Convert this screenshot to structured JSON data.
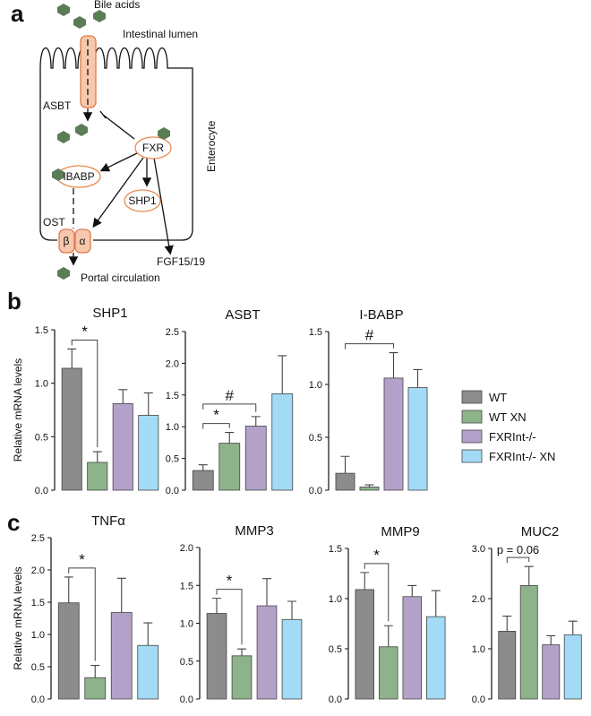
{
  "panels": {
    "a": "a",
    "b": "b",
    "c": "c"
  },
  "diagram": {
    "bile_acids": "Bile acids",
    "lumen": "Intestinal lumen",
    "asbt": "ASBT",
    "enterocyte": "Enterocyte",
    "fxr": "FXR",
    "ibabp": "IBABP",
    "shp1": "SHP1",
    "ost": "OST",
    "beta": "β",
    "alpha": "α",
    "fgf": "FGF15/19",
    "portal": "Portal circulation"
  },
  "legend": [
    {
      "name": "WT",
      "color": "#8c8c8c"
    },
    {
      "name": "WT XN",
      "color": "#8db38a"
    },
    {
      "name": "FXRInt-/-",
      "color": "#b4a1c9"
    },
    {
      "name": "FXRInt-/- XN",
      "color": "#a3daf5"
    }
  ],
  "chart_data": [
    {
      "type": "bar",
      "title": "SHP1",
      "ylabel": "Relative mRNA levels",
      "values": [
        1.14,
        0.26,
        0.81,
        0.7
      ],
      "errors": [
        0.18,
        0.1,
        0.13,
        0.21
      ],
      "ylim": [
        0,
        1.5
      ],
      "yticks": [
        {
          "value": 0,
          "label": "0.0"
        },
        0.5,
        {
          "value": 1,
          "label": "1.0"
        },
        1.5
      ],
      "annotations": [
        {
          "text": "*",
          "between": [
            0,
            1
          ]
        }
      ]
    },
    {
      "type": "bar",
      "title": "ASBT",
      "values": [
        0.31,
        0.74,
        1.01,
        1.52
      ],
      "errors": [
        0.09,
        0.17,
        0.15,
        0.6
      ],
      "ylim": [
        0,
        2.5
      ],
      "yticks": [
        {
          "value": 0,
          "label": "0.0"
        },
        0.5,
        {
          "value": 1,
          "label": "1.0"
        },
        1.5,
        {
          "value": 2,
          "label": "2.0"
        },
        2.5
      ],
      "annotations": [
        {
          "text": "*",
          "between": [
            0,
            1
          ]
        },
        {
          "text": "#",
          "between": [
            0,
            2
          ]
        }
      ]
    },
    {
      "type": "bar",
      "title": "I-BABP",
      "values": [
        0.16,
        0.03,
        1.06,
        0.97
      ],
      "errors": [
        0.16,
        0.02,
        0.24,
        0.17
      ],
      "ylim": [
        0,
        1.5
      ],
      "yticks": [
        {
          "value": 0,
          "label": "0.0"
        },
        0.5,
        {
          "value": 1,
          "label": "1.0"
        },
        1.5
      ],
      "annotations": [
        {
          "text": "#",
          "between": [
            0,
            2
          ]
        }
      ]
    },
    {
      "type": "bar",
      "title": "TNFα",
      "ylabel": "Relative mRNA levels",
      "values": [
        1.49,
        0.33,
        1.34,
        0.83
      ],
      "errors": [
        0.4,
        0.19,
        0.53,
        0.35
      ],
      "ylim": [
        0,
        2.5
      ],
      "yticks": [
        {
          "value": 0,
          "label": "0.0"
        },
        0.5,
        {
          "value": 1,
          "label": "1.0"
        },
        1.5,
        {
          "value": 2,
          "label": "2.0"
        },
        2.5
      ],
      "annotations": [
        {
          "text": "*",
          "between": [
            0,
            1
          ]
        }
      ]
    },
    {
      "type": "bar",
      "title": "MMP3",
      "values": [
        1.13,
        0.57,
        1.23,
        1.05
      ],
      "errors": [
        0.2,
        0.09,
        0.36,
        0.24
      ],
      "ylim": [
        0,
        2
      ],
      "yticks": [
        {
          "value": 0,
          "label": "0.0"
        },
        0.5,
        {
          "value": 1,
          "label": "1.0"
        },
        1.5,
        {
          "value": 2,
          "label": "2.0"
        }
      ],
      "annotations": [
        {
          "text": "*",
          "between": [
            0,
            1
          ]
        }
      ]
    },
    {
      "type": "bar",
      "title": "MMP9",
      "values": [
        1.09,
        0.52,
        1.02,
        0.82
      ],
      "errors": [
        0.17,
        0.21,
        0.11,
        0.26
      ],
      "ylim": [
        0,
        1.5
      ],
      "yticks": [
        {
          "value": 0,
          "label": "0.0"
        },
        0.5,
        {
          "value": 1,
          "label": "1.0"
        },
        1.5
      ],
      "annotations": [
        {
          "text": "*",
          "between": [
            0,
            1
          ]
        }
      ]
    },
    {
      "type": "bar",
      "title": "MUC2",
      "values": [
        1.35,
        2.26,
        1.08,
        1.28
      ],
      "errors": [
        0.3,
        0.38,
        0.18,
        0.27
      ],
      "ylim": [
        0,
        3
      ],
      "yticks": [
        {
          "value": 0,
          "label": "0.0"
        },
        {
          "value": 1,
          "label": "1.0"
        },
        {
          "value": 2,
          "label": "2.0"
        },
        {
          "value": 3,
          "label": "3.0"
        }
      ],
      "annotations": [
        {
          "text": "p = 0.06",
          "between": [
            0,
            1
          ]
        }
      ]
    }
  ]
}
